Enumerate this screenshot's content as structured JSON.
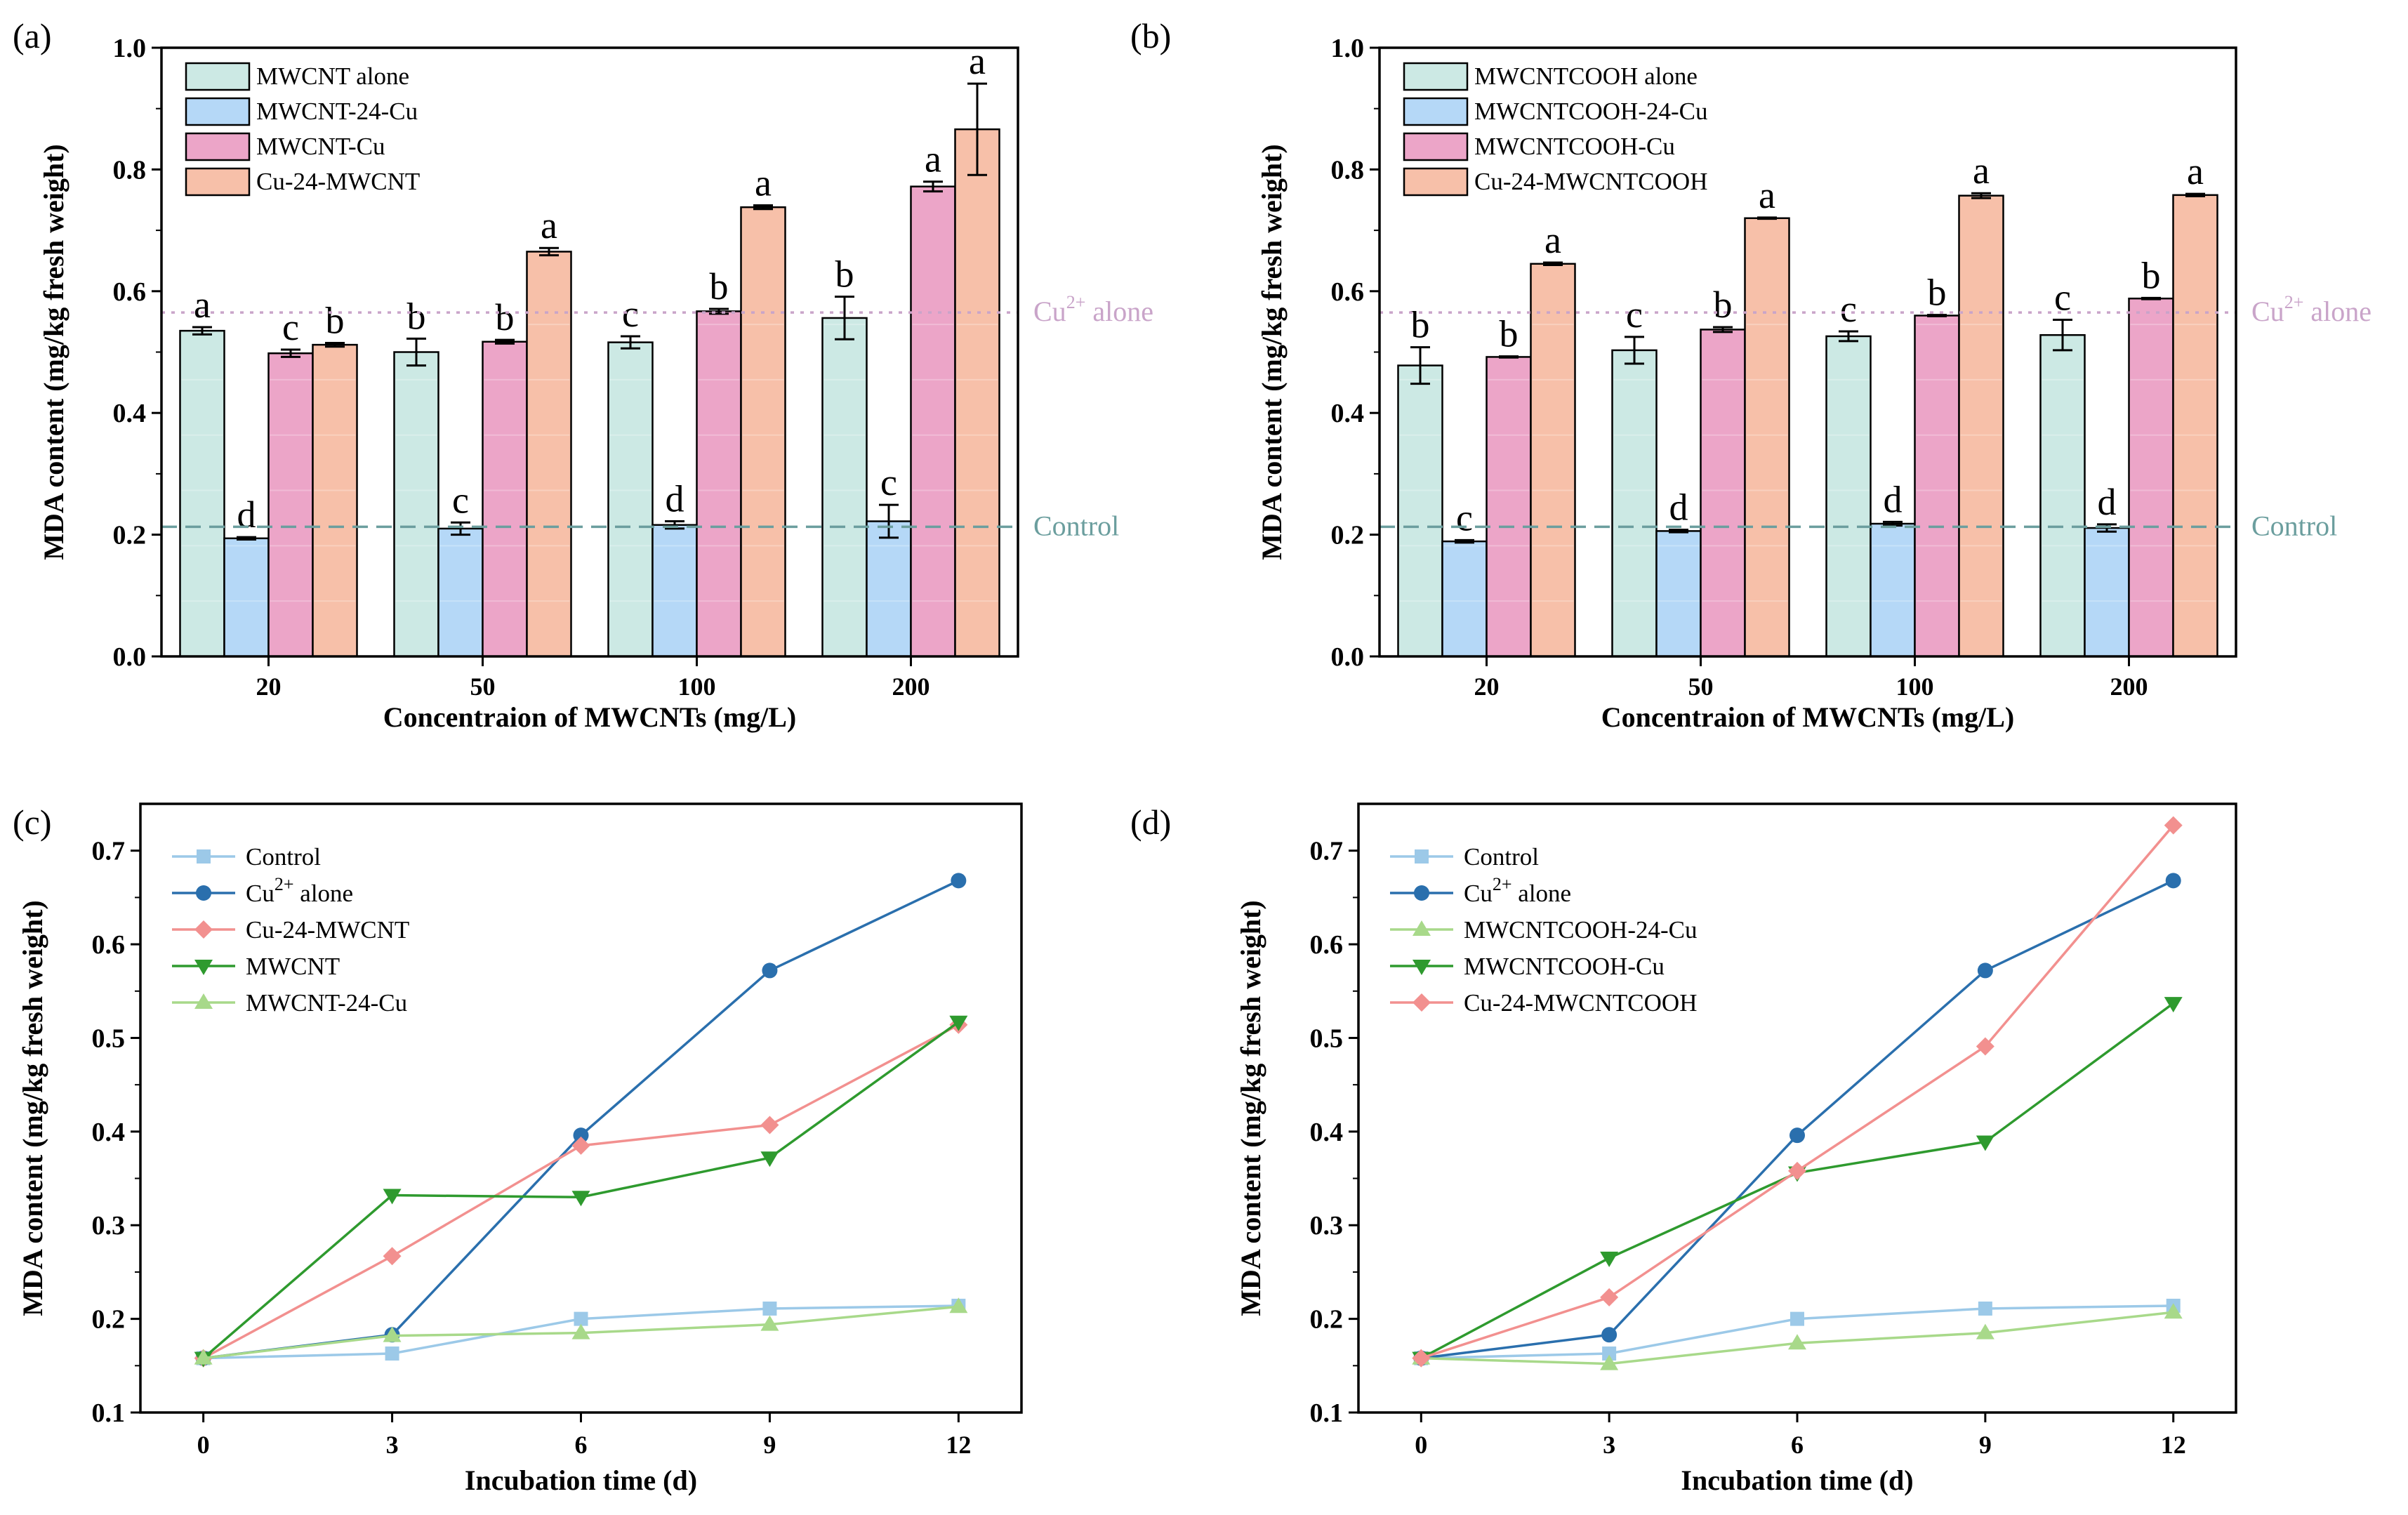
{
  "chart_data": [
    {
      "panel": "(a)",
      "type": "bar",
      "xlabel": "Concentraion of  MWCNTs (mg/L)",
      "ylabel": "MDA content (mg/kg fresh weight)",
      "ylim": [
        0,
        1.0
      ],
      "yticks": [
        "0.0",
        "0.2",
        "0.4",
        "0.6",
        "0.8",
        "1.0"
      ],
      "categories": [
        "20",
        "50",
        "100",
        "200"
      ],
      "legend_position": "top-left",
      "reference_lines": [
        {
          "label": "Cu",
          "sup": "2+",
          "suffix": " alone",
          "value": 0.565,
          "color": "#c9a4c9",
          "style": "dotted"
        },
        {
          "label": "Control",
          "sup": "",
          "suffix": "",
          "value": 0.213,
          "color": "#6b9e9e",
          "style": "dashed"
        }
      ],
      "series": [
        {
          "name": "MWCNT alone",
          "color": "#cce9e4",
          "values": [
            0.535,
            0.5,
            0.516,
            0.556
          ],
          "errors": [
            0.006,
            0.022,
            0.01,
            0.035
          ],
          "letters": [
            "a",
            "b",
            "c",
            "b"
          ]
        },
        {
          "name": "MWCNT-24-Cu",
          "color": "#b5d8f7",
          "values": [
            0.194,
            0.21,
            0.216,
            0.222
          ],
          "errors": [
            0.002,
            0.01,
            0.006,
            0.027
          ],
          "letters": [
            "d",
            "c",
            "d",
            "c"
          ]
        },
        {
          "name": "MWCNT-Cu",
          "color": "#eca5c8",
          "values": [
            0.498,
            0.517,
            0.567,
            0.772
          ],
          "errors": [
            0.006,
            0.003,
            0.004,
            0.008
          ],
          "letters": [
            "c",
            "b",
            "b",
            "a"
          ]
        },
        {
          "name": "Cu-24-MWCNT",
          "color": "#f7c0a9",
          "values": [
            0.512,
            0.665,
            0.738,
            0.866
          ],
          "errors": [
            0.003,
            0.006,
            0.003,
            0.075
          ],
          "letters": [
            "b",
            "a",
            "a",
            "a"
          ]
        }
      ]
    },
    {
      "panel": "(b)",
      "type": "bar",
      "xlabel": "Concentraion of  MWCNTs (mg/L)",
      "ylabel": "MDA content (mg/kg fresh weight)",
      "ylim": [
        0,
        1.0
      ],
      "yticks": [
        "0.0",
        "0.2",
        "0.4",
        "0.6",
        "0.8",
        "1.0"
      ],
      "categories": [
        "20",
        "50",
        "100",
        "200"
      ],
      "legend_position": "top-left",
      "reference_lines": [
        {
          "label": "Cu",
          "sup": "2+",
          "suffix": " alone",
          "value": 0.565,
          "color": "#c9a4c9",
          "style": "dotted"
        },
        {
          "label": "Control",
          "sup": "",
          "suffix": "",
          "value": 0.213,
          "color": "#6b9e9e",
          "style": "dashed"
        }
      ],
      "series": [
        {
          "name": "MWCNTCOOH alone",
          "color": "#cce9e4",
          "values": [
            0.478,
            0.503,
            0.526,
            0.528
          ],
          "errors": [
            0.03,
            0.022,
            0.008,
            0.025
          ],
          "letters": [
            "b",
            "c",
            "c",
            "c"
          ]
        },
        {
          "name": "MWCNTCOOH-24-Cu",
          "color": "#b5d8f7",
          "values": [
            0.189,
            0.206,
            0.218,
            0.211
          ],
          "errors": [
            0.002,
            0.002,
            0.003,
            0.006
          ],
          "letters": [
            "c",
            "d",
            "d",
            "d"
          ]
        },
        {
          "name": "MWCNTCOOH-Cu",
          "color": "#eca5c8",
          "values": [
            0.492,
            0.537,
            0.56,
            0.588
          ],
          "errors": [
            0.001,
            0.004,
            0.001,
            0.001
          ],
          "letters": [
            "b",
            "b",
            "b",
            "b"
          ]
        },
        {
          "name": "Cu-24-MWCNTCOOH",
          "color": "#f7c0a9",
          "values": [
            0.645,
            0.72,
            0.757,
            0.758
          ],
          "errors": [
            0.002,
            0.001,
            0.004,
            0.002
          ],
          "letters": [
            "a",
            "a",
            "a",
            "a"
          ]
        }
      ]
    },
    {
      "panel": "(c)",
      "type": "line",
      "xlabel": "Incubation time (d)",
      "ylabel": "MDA content (mg/kg fresh weight)",
      "x": [
        0,
        3,
        6,
        9,
        12
      ],
      "xlim": [
        -1,
        13
      ],
      "ylim": [
        0.1,
        0.75
      ],
      "yticks": [
        "0.1",
        "0.2",
        "0.3",
        "0.4",
        "0.5",
        "0.6",
        "0.7"
      ],
      "legend_position": "top-left",
      "series": [
        {
          "name": "Control",
          "sup": "",
          "suffix": "",
          "color": "#9cc9e8",
          "marker": "square",
          "values": [
            0.158,
            0.163,
            0.2,
            0.211,
            0.214
          ]
        },
        {
          "name": "Cu",
          "sup": "2+",
          "suffix": " alone",
          "color": "#2a6fad",
          "marker": "circle",
          "values": [
            0.158,
            0.183,
            0.396,
            0.572,
            0.668
          ]
        },
        {
          "name": "Cu-24-MWCNT",
          "sup": "",
          "suffix": "",
          "color": "#f2908f",
          "marker": "diamond",
          "values": [
            0.158,
            0.267,
            0.385,
            0.407,
            0.514
          ]
        },
        {
          "name": "MWCNT",
          "sup": "",
          "suffix": "",
          "color": "#2e9a2e",
          "marker": "triangle-down",
          "values": [
            0.158,
            0.332,
            0.33,
            0.372,
            0.517
          ]
        },
        {
          "name": "MWCNT-24-Cu",
          "sup": "",
          "suffix": "",
          "color": "#a8d98a",
          "marker": "triangle-up",
          "values": [
            0.158,
            0.182,
            0.185,
            0.194,
            0.213
          ]
        }
      ]
    },
    {
      "panel": "(d)",
      "type": "line",
      "xlabel": "Incubation time (d)",
      "ylabel": "MDA content (mg/kg fresh weight)",
      "x": [
        0,
        3,
        6,
        9,
        12
      ],
      "xlim": [
        -1,
        13
      ],
      "ylim": [
        0.1,
        0.75
      ],
      "yticks": [
        "0.1",
        "0.2",
        "0.3",
        "0.4",
        "0.5",
        "0.6",
        "0.7"
      ],
      "legend_position": "top-left",
      "series": [
        {
          "name": "Control",
          "sup": "",
          "suffix": "",
          "color": "#9cc9e8",
          "marker": "square",
          "values": [
            0.158,
            0.163,
            0.2,
            0.211,
            0.214
          ]
        },
        {
          "name": "Cu",
          "sup": "2+",
          "suffix": " alone",
          "color": "#2a6fad",
          "marker": "circle",
          "values": [
            0.158,
            0.183,
            0.396,
            0.572,
            0.668
          ]
        },
        {
          "name": "MWCNTCOOH-24-Cu",
          "sup": "",
          "suffix": "",
          "color": "#a8d98a",
          "marker": "triangle-up",
          "values": [
            0.158,
            0.152,
            0.174,
            0.185,
            0.207
          ]
        },
        {
          "name": "MWCNTCOOH-Cu",
          "sup": "",
          "suffix": "",
          "color": "#2e9a2e",
          "marker": "triangle-down",
          "values": [
            0.158,
            0.265,
            0.356,
            0.389,
            0.537
          ]
        },
        {
          "name": "Cu-24-MWCNTCOOH",
          "sup": "",
          "suffix": "",
          "color": "#f2908f",
          "marker": "diamond",
          "values": [
            0.158,
            0.223,
            0.358,
            0.491,
            0.727
          ]
        }
      ]
    }
  ]
}
